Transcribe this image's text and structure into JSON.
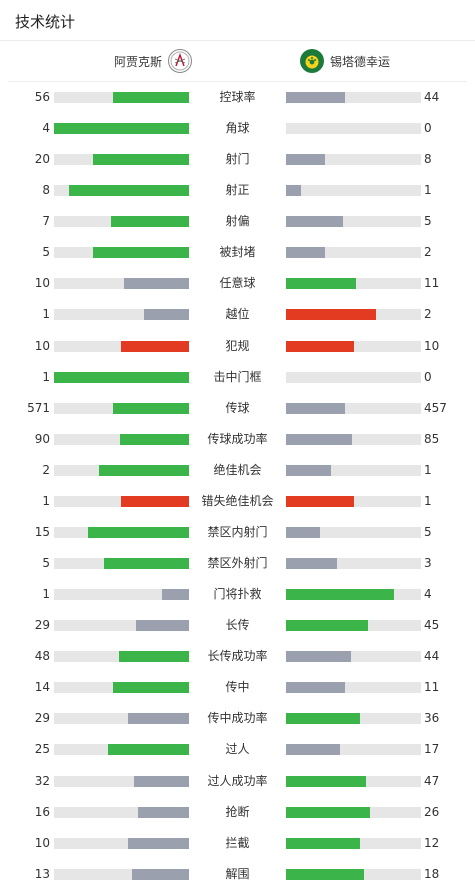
{
  "page": {
    "title": "技术统计"
  },
  "teams": {
    "home": "阿贾克斯",
    "away": "锡塔德幸运"
  },
  "colors": {
    "green": "#3bb54a",
    "gray": "#9aa0ad",
    "red": "#e23b22",
    "track": "#e6e6e6"
  },
  "stats": [
    {
      "label": "控球率",
      "home": "56",
      "away": "44",
      "home_frac": 0.56,
      "away_frac": 0.44,
      "home_color": "green",
      "away_color": "gray"
    },
    {
      "label": "角球",
      "home": "4",
      "away": "0",
      "home_frac": 1.0,
      "away_frac": 0.0,
      "home_color": "green",
      "away_color": "gray"
    },
    {
      "label": "射门",
      "home": "20",
      "away": "8",
      "home_frac": 0.71,
      "away_frac": 0.29,
      "home_color": "green",
      "away_color": "gray"
    },
    {
      "label": "射正",
      "home": "8",
      "away": "1",
      "home_frac": 0.89,
      "away_frac": 0.11,
      "home_color": "green",
      "away_color": "gray"
    },
    {
      "label": "射偏",
      "home": "7",
      "away": "5",
      "home_frac": 0.58,
      "away_frac": 0.42,
      "home_color": "green",
      "away_color": "gray"
    },
    {
      "label": "被封堵",
      "home": "5",
      "away": "2",
      "home_frac": 0.71,
      "away_frac": 0.29,
      "home_color": "green",
      "away_color": "gray"
    },
    {
      "label": "任意球",
      "home": "10",
      "away": "11",
      "home_frac": 0.48,
      "away_frac": 0.52,
      "home_color": "gray",
      "away_color": "green"
    },
    {
      "label": "越位",
      "home": "1",
      "away": "2",
      "home_frac": 0.33,
      "away_frac": 0.67,
      "home_color": "gray",
      "away_color": "red"
    },
    {
      "label": "犯规",
      "home": "10",
      "away": "10",
      "home_frac": 0.5,
      "away_frac": 0.5,
      "home_color": "red",
      "away_color": "red"
    },
    {
      "label": "击中门框",
      "home": "1",
      "away": "0",
      "home_frac": 1.0,
      "away_frac": 0.0,
      "home_color": "green",
      "away_color": "gray"
    },
    {
      "label": "传球",
      "home": "571",
      "away": "457",
      "home_frac": 0.56,
      "away_frac": 0.44,
      "home_color": "green",
      "away_color": "gray"
    },
    {
      "label": "传球成功率",
      "home": "90",
      "away": "85",
      "home_frac": 0.51,
      "away_frac": 0.49,
      "home_color": "green",
      "away_color": "gray"
    },
    {
      "label": "绝佳机会",
      "home": "2",
      "away": "1",
      "home_frac": 0.67,
      "away_frac": 0.33,
      "home_color": "green",
      "away_color": "gray"
    },
    {
      "label": "错失绝佳机会",
      "home": "1",
      "away": "1",
      "home_frac": 0.5,
      "away_frac": 0.5,
      "home_color": "red",
      "away_color": "red"
    },
    {
      "label": "禁区内射门",
      "home": "15",
      "away": "5",
      "home_frac": 0.75,
      "away_frac": 0.25,
      "home_color": "green",
      "away_color": "gray"
    },
    {
      "label": "禁区外射门",
      "home": "5",
      "away": "3",
      "home_frac": 0.63,
      "away_frac": 0.38,
      "home_color": "green",
      "away_color": "gray"
    },
    {
      "label": "门将扑救",
      "home": "1",
      "away": "4",
      "home_frac": 0.2,
      "away_frac": 0.8,
      "home_color": "gray",
      "away_color": "green"
    },
    {
      "label": "长传",
      "home": "29",
      "away": "45",
      "home_frac": 0.39,
      "away_frac": 0.61,
      "home_color": "gray",
      "away_color": "green"
    },
    {
      "label": "长传成功率",
      "home": "48",
      "away": "44",
      "home_frac": 0.52,
      "away_frac": 0.48,
      "home_color": "green",
      "away_color": "gray"
    },
    {
      "label": "传中",
      "home": "14",
      "away": "11",
      "home_frac": 0.56,
      "away_frac": 0.44,
      "home_color": "green",
      "away_color": "gray"
    },
    {
      "label": "传中成功率",
      "home": "29",
      "away": "36",
      "home_frac": 0.45,
      "away_frac": 0.55,
      "home_color": "gray",
      "away_color": "green"
    },
    {
      "label": "过人",
      "home": "25",
      "away": "17",
      "home_frac": 0.6,
      "away_frac": 0.4,
      "home_color": "green",
      "away_color": "gray"
    },
    {
      "label": "过人成功率",
      "home": "32",
      "away": "47",
      "home_frac": 0.41,
      "away_frac": 0.59,
      "home_color": "gray",
      "away_color": "green"
    },
    {
      "label": "抢断",
      "home": "16",
      "away": "26",
      "home_frac": 0.38,
      "away_frac": 0.62,
      "home_color": "gray",
      "away_color": "green"
    },
    {
      "label": "拦截",
      "home": "10",
      "away": "12",
      "home_frac": 0.45,
      "away_frac": 0.55,
      "home_color": "gray",
      "away_color": "green"
    },
    {
      "label": "解围",
      "home": "13",
      "away": "18",
      "home_frac": 0.42,
      "away_frac": 0.58,
      "home_color": "gray",
      "away_color": "green"
    }
  ]
}
